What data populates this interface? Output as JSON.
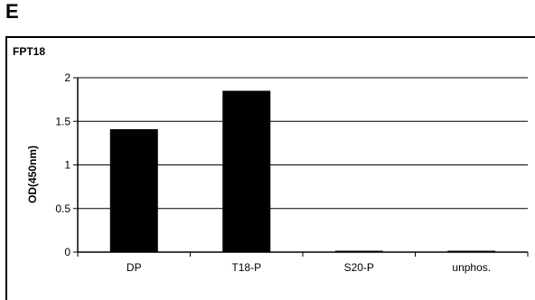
{
  "panel": {
    "letter": "E"
  },
  "chart_data": {
    "type": "bar",
    "title": "FPT18",
    "xlabel": "",
    "ylabel": "OD(450nm)",
    "categories": [
      "DP",
      "T18-P",
      "S20-P",
      "unphos."
    ],
    "values": [
      1.41,
      1.85,
      0.01,
      0.01
    ],
    "ylim": [
      0,
      2
    ],
    "yticks": [
      0,
      0.5,
      1,
      1.5,
      2
    ],
    "ytick_labels": [
      "0",
      "0.5",
      "1",
      "1.5",
      "2"
    ],
    "grid": true,
    "legend": "none",
    "colors": {
      "bar": "#000000",
      "gridline": "#000000",
      "frame": "#000000"
    }
  }
}
